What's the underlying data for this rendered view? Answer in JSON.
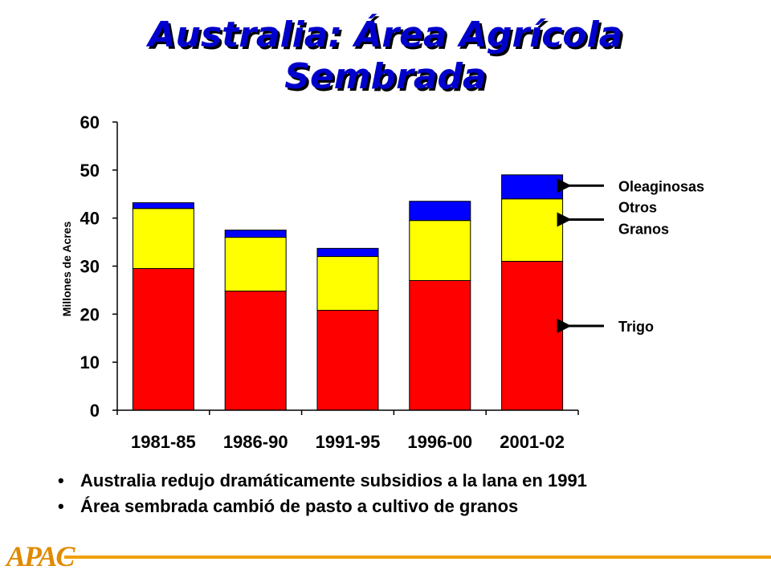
{
  "header": {
    "title_line1": "Australia: Área Agrícola",
    "title_line2": "Sembrada"
  },
  "chart_data": {
    "type": "bar",
    "stacked": true,
    "categories": [
      "1981-85",
      "1986-90",
      "1991-95",
      "1996-00",
      "2001-02"
    ],
    "series": [
      {
        "name": "Trigo",
        "color": "#ff0000",
        "values": [
          29.5,
          24.8,
          20.8,
          27.0,
          31.0
        ]
      },
      {
        "name": "Otros Granos",
        "color": "#ffff00",
        "values": [
          12.5,
          11.2,
          11.2,
          12.5,
          13.0
        ]
      },
      {
        "name": "Oleaginosas",
        "color": "#0000ff",
        "values": [
          1.2,
          1.5,
          1.7,
          4.0,
          5.0
        ]
      }
    ],
    "ylabel": "Millones de Acres",
    "xlabel": "",
    "ylim": [
      0,
      60
    ],
    "yticks": [
      0,
      10,
      20,
      30,
      40,
      50,
      60
    ],
    "legend_labels": {
      "oleaginosas": "Oleaginosas",
      "otros_line1": "Otros",
      "otros_line2": "Granos",
      "trigo": "Trigo"
    },
    "grid": false,
    "legend_position": "right, with arrows"
  },
  "bullets": [
    "Australia redujo dramáticamente subsidios a la lana en 1991",
    "Área sembrada cambió de pasto a cultivo de granos"
  ],
  "footer": {
    "logo_text": "APAC",
    "accent_color": "#f0a000"
  }
}
